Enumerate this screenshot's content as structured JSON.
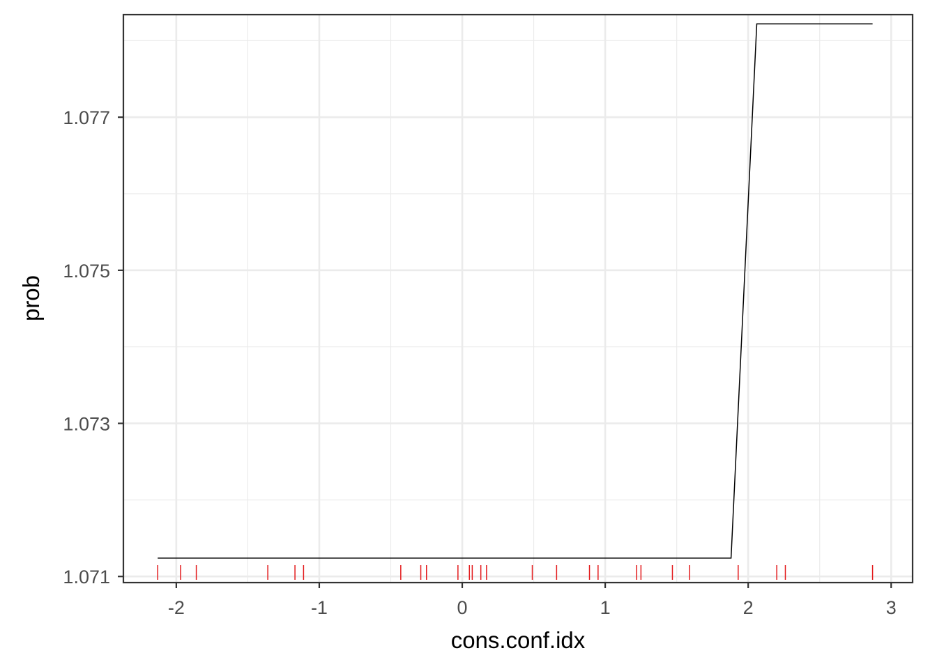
{
  "chart_data": {
    "type": "line",
    "xlabel": "cons.conf.idx",
    "ylabel": "prob",
    "xlim": [
      -2.37,
      3.15
    ],
    "ylim": [
      1.07092,
      1.07834
    ],
    "x_ticks": [
      -2,
      -1,
      0,
      1,
      2,
      3
    ],
    "x_tick_labels": [
      "-2",
      "-1",
      "0",
      "1",
      "2",
      "3"
    ],
    "y_ticks": [
      1.071,
      1.073,
      1.075,
      1.077
    ],
    "y_tick_labels": [
      "1.071",
      "1.073",
      "1.075",
      "1.077"
    ],
    "x_minor_ticks": [
      -1.5,
      -0.5,
      0.5,
      1.5,
      2.5
    ],
    "y_minor_ticks": [
      1.072,
      1.074,
      1.076,
      1.078
    ],
    "grid": true,
    "series": [
      {
        "x": [
          -2.13,
          1.88,
          2.06,
          2.87
        ],
        "values": [
          1.07124,
          1.07124,
          1.07822,
          1.07822
        ],
        "color": "#000000"
      }
    ],
    "rug": {
      "color": "#e31a1c",
      "x": [
        -2.13,
        -1.97,
        -1.86,
        -1.36,
        -1.17,
        -1.11,
        -0.43,
        -0.29,
        -0.25,
        -0.03,
        0.05,
        0.07,
        0.13,
        0.17,
        0.49,
        0.66,
        0.89,
        0.95,
        1.22,
        1.25,
        1.47,
        1.59,
        1.93,
        2.2,
        2.26,
        2.87
      ]
    }
  }
}
